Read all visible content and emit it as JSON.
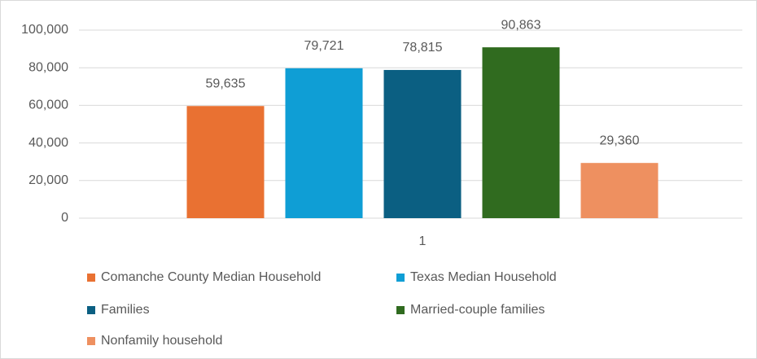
{
  "chart_data": {
    "type": "bar",
    "categories": [
      "1"
    ],
    "series": [
      {
        "name": "Comanche County Median Household",
        "color": "#E97132",
        "values": [
          59635
        ],
        "value_labels": [
          "59,635"
        ]
      },
      {
        "name": "Texas Median Household",
        "color": "#0F9ED5",
        "values": [
          79721
        ],
        "value_labels": [
          "79,721"
        ]
      },
      {
        "name": "Families",
        "color": "#0B5F82",
        "values": [
          78815
        ],
        "value_labels": [
          "78,815"
        ]
      },
      {
        "name": "Married-couple families",
        "color": "#306B1F",
        "values": [
          90863
        ],
        "value_labels": [
          "90,863"
        ]
      },
      {
        "name": "Nonfamily household",
        "color": "#EE9060",
        "values": [
          29360
        ],
        "value_labels": [
          "29,360"
        ]
      }
    ],
    "ylim": [
      0,
      100000
    ],
    "yticks": [
      0,
      {
        "value": 20000,
        "label": "20,000"
      },
      {
        "value": 40000,
        "label": "40,000"
      },
      {
        "value": 60000,
        "label": "60,000"
      },
      {
        "value": 80000,
        "label": "80,000"
      },
      {
        "value": 100000,
        "label": "100,000"
      }
    ],
    "grid": true,
    "legend": "bottom"
  }
}
